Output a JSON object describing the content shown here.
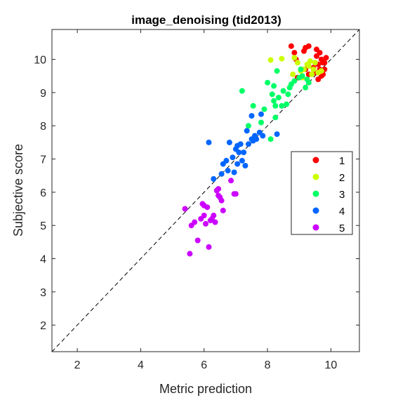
{
  "chart_data": {
    "type": "scatter",
    "title": "image_denoising (tid2013)",
    "xlabel": "Metric prediction",
    "ylabel": "Subjective score",
    "xlim": [
      1.2,
      10.9
    ],
    "ylim": [
      1.2,
      10.9
    ],
    "xticks": [
      2,
      4,
      6,
      8,
      10
    ],
    "yticks": [
      2,
      3,
      4,
      5,
      6,
      7,
      8,
      9,
      10
    ],
    "grid": false,
    "legend_position": "right",
    "reference_line": {
      "style": "dashed",
      "color": "#000000",
      "from": [
        1.2,
        1.2
      ],
      "to": [
        10.9,
        10.9
      ]
    },
    "series": [
      {
        "name": "1",
        "color": "#ff0000",
        "points": [
          [
            8.75,
            10.4
          ],
          [
            8.85,
            10.2
          ],
          [
            9.2,
            10.35
          ],
          [
            9.3,
            10.4
          ],
          [
            9.55,
            10.3
          ],
          [
            9.65,
            10.2
          ],
          [
            9.7,
            10.0
          ],
          [
            9.75,
            9.9
          ],
          [
            9.6,
            9.85
          ],
          [
            9.8,
            9.7
          ],
          [
            9.5,
            9.6
          ],
          [
            9.45,
            9.75
          ],
          [
            9.7,
            9.5
          ],
          [
            9.6,
            9.4
          ],
          [
            9.3,
            9.55
          ],
          [
            9.2,
            9.7
          ],
          [
            9.85,
            10.05
          ],
          [
            9.15,
            10.25
          ],
          [
            9.55,
            10.1
          ],
          [
            8.9,
            10.0
          ],
          [
            8.95,
            9.45
          ],
          [
            9.75,
            9.55
          ],
          [
            9.65,
            9.7
          ],
          [
            9.8,
            9.9
          ]
        ]
      },
      {
        "name": "2",
        "color": "#ccff00",
        "points": [
          [
            8.1,
            9.98
          ],
          [
            8.45,
            10.02
          ],
          [
            8.85,
            10.05
          ],
          [
            8.95,
            9.9
          ],
          [
            8.8,
            9.55
          ],
          [
            9.1,
            9.45
          ],
          [
            9.15,
            9.7
          ],
          [
            9.3,
            9.8
          ],
          [
            9.4,
            9.55
          ],
          [
            9.5,
            9.9
          ],
          [
            9.25,
            9.85
          ],
          [
            9.6,
            9.6
          ],
          [
            9.35,
            9.95
          ],
          [
            9.05,
            9.65
          ],
          [
            9.45,
            9.7
          ],
          [
            9.7,
            9.65
          ]
        ]
      },
      {
        "name": "3",
        "color": "#00ff66",
        "points": [
          [
            7.2,
            9.05
          ],
          [
            8.0,
            9.3
          ],
          [
            8.2,
            9.2
          ],
          [
            8.3,
            9.65
          ],
          [
            8.15,
            8.95
          ],
          [
            8.2,
            8.75
          ],
          [
            8.25,
            8.6
          ],
          [
            8.35,
            8.85
          ],
          [
            8.5,
            9.05
          ],
          [
            8.6,
            8.65
          ],
          [
            8.7,
            9.15
          ],
          [
            8.75,
            9.25
          ],
          [
            8.65,
            8.95
          ],
          [
            8.85,
            9.35
          ],
          [
            9.0,
            9.45
          ],
          [
            9.05,
            9.7
          ],
          [
            9.1,
            9.5
          ],
          [
            9.2,
            9.15
          ],
          [
            9.25,
            9.4
          ],
          [
            9.3,
            9.3
          ],
          [
            7.55,
            8.6
          ],
          [
            7.4,
            8.0
          ],
          [
            7.8,
            8.1
          ],
          [
            8.1,
            7.6
          ],
          [
            7.9,
            8.5
          ],
          [
            8.25,
            8.25
          ],
          [
            8.45,
            8.6
          ]
        ]
      },
      {
        "name": "4",
        "color": "#0066ff",
        "points": [
          [
            6.15,
            7.5
          ],
          [
            6.3,
            6.4
          ],
          [
            6.55,
            6.55
          ],
          [
            6.6,
            6.85
          ],
          [
            6.7,
            6.95
          ],
          [
            6.75,
            6.65
          ],
          [
            6.8,
            7.5
          ],
          [
            6.9,
            7.05
          ],
          [
            7.0,
            7.3
          ],
          [
            7.05,
            7.4
          ],
          [
            7.1,
            7.2
          ],
          [
            7.15,
            7.45
          ],
          [
            7.2,
            6.95
          ],
          [
            7.25,
            7.2
          ],
          [
            7.3,
            6.8
          ],
          [
            7.35,
            7.85
          ],
          [
            7.4,
            7.45
          ],
          [
            7.5,
            7.6
          ],
          [
            7.55,
            7.55
          ],
          [
            7.6,
            7.7
          ],
          [
            7.65,
            7.6
          ],
          [
            7.75,
            7.8
          ],
          [
            7.8,
            8.35
          ],
          [
            7.85,
            7.7
          ],
          [
            7.5,
            8.3
          ],
          [
            8.3,
            7.75
          ],
          [
            6.95,
            6.6
          ],
          [
            7.05,
            6.85
          ]
        ]
      },
      {
        "name": "5",
        "color": "#cc00ff",
        "points": [
          [
            5.4,
            5.5
          ],
          [
            5.55,
            4.15
          ],
          [
            5.6,
            5.0
          ],
          [
            5.7,
            5.1
          ],
          [
            5.8,
            4.55
          ],
          [
            5.9,
            5.2
          ],
          [
            5.95,
            5.65
          ],
          [
            6.0,
            5.3
          ],
          [
            6.05,
            5.05
          ],
          [
            6.1,
            5.55
          ],
          [
            6.15,
            4.35
          ],
          [
            6.2,
            5.15
          ],
          [
            6.25,
            5.2
          ],
          [
            6.3,
            5.3
          ],
          [
            6.35,
            5.1
          ],
          [
            6.4,
            6.05
          ],
          [
            6.45,
            6.1
          ],
          [
            6.5,
            5.85
          ],
          [
            6.55,
            5.75
          ],
          [
            6.6,
            5.45
          ],
          [
            6.85,
            6.35
          ],
          [
            6.95,
            5.95
          ],
          [
            7.0,
            5.95
          ],
          [
            6.0,
            5.6
          ],
          [
            6.45,
            5.9
          ]
        ]
      }
    ]
  }
}
